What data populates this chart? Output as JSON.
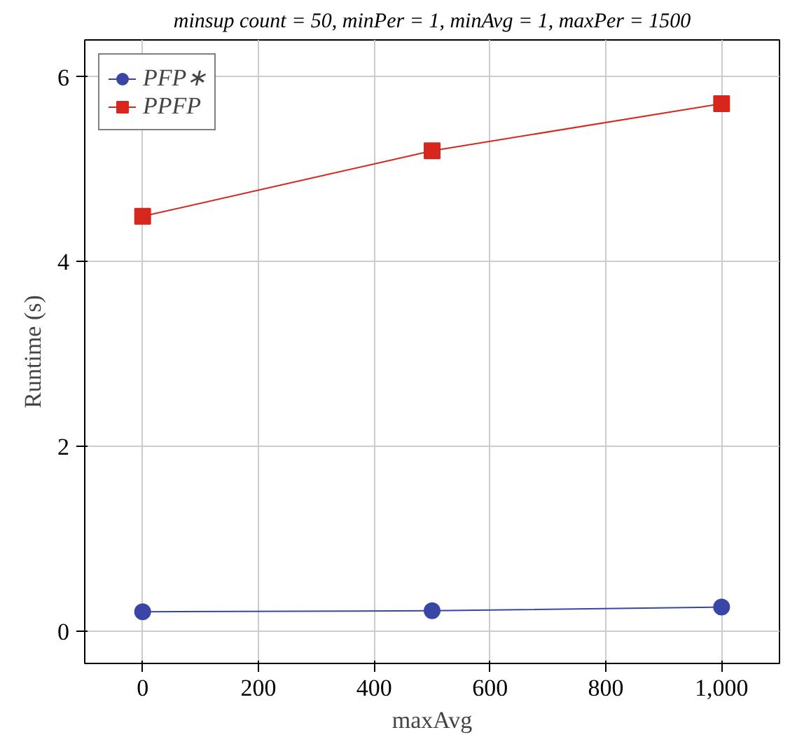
{
  "chart_data": {
    "type": "line",
    "title": "minsup count = 50, minPer = 1, minAvg = 1, maxPer = 1500",
    "xlabel": "maxAvg",
    "ylabel": "Runtime (s)",
    "x": [
      0,
      500,
      1000
    ],
    "series": [
      {
        "name": "PFP∗",
        "color": "#3a46a6",
        "values": [
          0.21,
          0.22,
          0.26
        ],
        "marker": "circle"
      },
      {
        "name": "PPFP",
        "color": "#d7261e",
        "values": [
          4.49,
          5.2,
          5.71
        ],
        "marker": "square"
      }
    ],
    "xlim": [
      -100,
      1100
    ],
    "ylim": [
      -0.35,
      6.4
    ],
    "xticks": [
      0,
      200,
      400,
      600,
      800,
      {
        "value": 1000,
        "label": "1,000"
      }
    ],
    "yticks": [
      0,
      2,
      4,
      6
    ],
    "grid": true,
    "legend": "top left",
    "line_style": "solid"
  }
}
